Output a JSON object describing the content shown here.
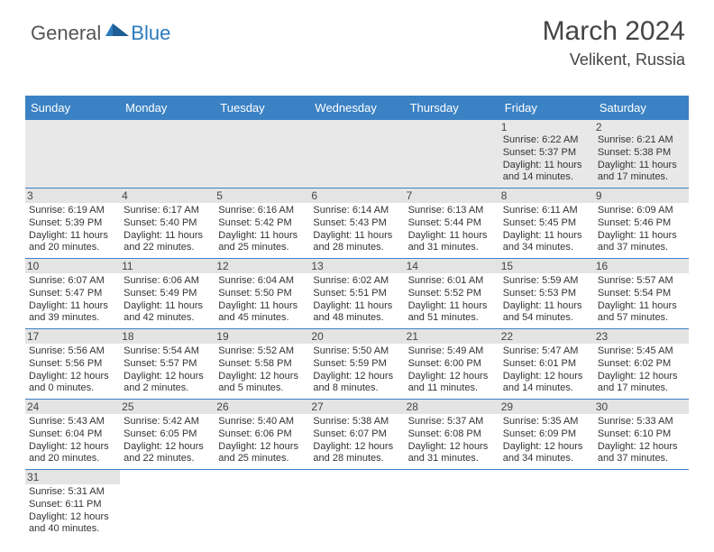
{
  "logo": {
    "first": "General",
    "second": "Blue"
  },
  "header": {
    "title": "March 2024",
    "location": "Velikent, Russia"
  },
  "colors": {
    "headerBg": "#3b82c4",
    "headerText": "#ffffff",
    "rowDivider": "#3b82c4",
    "dayBar": "#e4e4e4",
    "firstRowBg": "#e8e8e8",
    "logoBlue": "#2b7bbd"
  },
  "weekdays": [
    "Sunday",
    "Monday",
    "Tuesday",
    "Wednesday",
    "Thursday",
    "Friday",
    "Saturday"
  ],
  "weeks": [
    [
      null,
      null,
      null,
      null,
      null,
      {
        "n": "1",
        "sr": "Sunrise: 6:22 AM",
        "ss": "Sunset: 5:37 PM",
        "d1": "Daylight: 11 hours",
        "d2": "and 14 minutes."
      },
      {
        "n": "2",
        "sr": "Sunrise: 6:21 AM",
        "ss": "Sunset: 5:38 PM",
        "d1": "Daylight: 11 hours",
        "d2": "and 17 minutes."
      }
    ],
    [
      {
        "n": "3",
        "sr": "Sunrise: 6:19 AM",
        "ss": "Sunset: 5:39 PM",
        "d1": "Daylight: 11 hours",
        "d2": "and 20 minutes."
      },
      {
        "n": "4",
        "sr": "Sunrise: 6:17 AM",
        "ss": "Sunset: 5:40 PM",
        "d1": "Daylight: 11 hours",
        "d2": "and 22 minutes."
      },
      {
        "n": "5",
        "sr": "Sunrise: 6:16 AM",
        "ss": "Sunset: 5:42 PM",
        "d1": "Daylight: 11 hours",
        "d2": "and 25 minutes."
      },
      {
        "n": "6",
        "sr": "Sunrise: 6:14 AM",
        "ss": "Sunset: 5:43 PM",
        "d1": "Daylight: 11 hours",
        "d2": "and 28 minutes."
      },
      {
        "n": "7",
        "sr": "Sunrise: 6:13 AM",
        "ss": "Sunset: 5:44 PM",
        "d1": "Daylight: 11 hours",
        "d2": "and 31 minutes."
      },
      {
        "n": "8",
        "sr": "Sunrise: 6:11 AM",
        "ss": "Sunset: 5:45 PM",
        "d1": "Daylight: 11 hours",
        "d2": "and 34 minutes."
      },
      {
        "n": "9",
        "sr": "Sunrise: 6:09 AM",
        "ss": "Sunset: 5:46 PM",
        "d1": "Daylight: 11 hours",
        "d2": "and 37 minutes."
      }
    ],
    [
      {
        "n": "10",
        "sr": "Sunrise: 6:07 AM",
        "ss": "Sunset: 5:47 PM",
        "d1": "Daylight: 11 hours",
        "d2": "and 39 minutes."
      },
      {
        "n": "11",
        "sr": "Sunrise: 6:06 AM",
        "ss": "Sunset: 5:49 PM",
        "d1": "Daylight: 11 hours",
        "d2": "and 42 minutes."
      },
      {
        "n": "12",
        "sr": "Sunrise: 6:04 AM",
        "ss": "Sunset: 5:50 PM",
        "d1": "Daylight: 11 hours",
        "d2": "and 45 minutes."
      },
      {
        "n": "13",
        "sr": "Sunrise: 6:02 AM",
        "ss": "Sunset: 5:51 PM",
        "d1": "Daylight: 11 hours",
        "d2": "and 48 minutes."
      },
      {
        "n": "14",
        "sr": "Sunrise: 6:01 AM",
        "ss": "Sunset: 5:52 PM",
        "d1": "Daylight: 11 hours",
        "d2": "and 51 minutes."
      },
      {
        "n": "15",
        "sr": "Sunrise: 5:59 AM",
        "ss": "Sunset: 5:53 PM",
        "d1": "Daylight: 11 hours",
        "d2": "and 54 minutes."
      },
      {
        "n": "16",
        "sr": "Sunrise: 5:57 AM",
        "ss": "Sunset: 5:54 PM",
        "d1": "Daylight: 11 hours",
        "d2": "and 57 minutes."
      }
    ],
    [
      {
        "n": "17",
        "sr": "Sunrise: 5:56 AM",
        "ss": "Sunset: 5:56 PM",
        "d1": "Daylight: 12 hours",
        "d2": "and 0 minutes."
      },
      {
        "n": "18",
        "sr": "Sunrise: 5:54 AM",
        "ss": "Sunset: 5:57 PM",
        "d1": "Daylight: 12 hours",
        "d2": "and 2 minutes."
      },
      {
        "n": "19",
        "sr": "Sunrise: 5:52 AM",
        "ss": "Sunset: 5:58 PM",
        "d1": "Daylight: 12 hours",
        "d2": "and 5 minutes."
      },
      {
        "n": "20",
        "sr": "Sunrise: 5:50 AM",
        "ss": "Sunset: 5:59 PM",
        "d1": "Daylight: 12 hours",
        "d2": "and 8 minutes."
      },
      {
        "n": "21",
        "sr": "Sunrise: 5:49 AM",
        "ss": "Sunset: 6:00 PM",
        "d1": "Daylight: 12 hours",
        "d2": "and 11 minutes."
      },
      {
        "n": "22",
        "sr": "Sunrise: 5:47 AM",
        "ss": "Sunset: 6:01 PM",
        "d1": "Daylight: 12 hours",
        "d2": "and 14 minutes."
      },
      {
        "n": "23",
        "sr": "Sunrise: 5:45 AM",
        "ss": "Sunset: 6:02 PM",
        "d1": "Daylight: 12 hours",
        "d2": "and 17 minutes."
      }
    ],
    [
      {
        "n": "24",
        "sr": "Sunrise: 5:43 AM",
        "ss": "Sunset: 6:04 PM",
        "d1": "Daylight: 12 hours",
        "d2": "and 20 minutes."
      },
      {
        "n": "25",
        "sr": "Sunrise: 5:42 AM",
        "ss": "Sunset: 6:05 PM",
        "d1": "Daylight: 12 hours",
        "d2": "and 22 minutes."
      },
      {
        "n": "26",
        "sr": "Sunrise: 5:40 AM",
        "ss": "Sunset: 6:06 PM",
        "d1": "Daylight: 12 hours",
        "d2": "and 25 minutes."
      },
      {
        "n": "27",
        "sr": "Sunrise: 5:38 AM",
        "ss": "Sunset: 6:07 PM",
        "d1": "Daylight: 12 hours",
        "d2": "and 28 minutes."
      },
      {
        "n": "28",
        "sr": "Sunrise: 5:37 AM",
        "ss": "Sunset: 6:08 PM",
        "d1": "Daylight: 12 hours",
        "d2": "and 31 minutes."
      },
      {
        "n": "29",
        "sr": "Sunrise: 5:35 AM",
        "ss": "Sunset: 6:09 PM",
        "d1": "Daylight: 12 hours",
        "d2": "and 34 minutes."
      },
      {
        "n": "30",
        "sr": "Sunrise: 5:33 AM",
        "ss": "Sunset: 6:10 PM",
        "d1": "Daylight: 12 hours",
        "d2": "and 37 minutes."
      }
    ],
    [
      {
        "n": "31",
        "sr": "Sunrise: 5:31 AM",
        "ss": "Sunset: 6:11 PM",
        "d1": "Daylight: 12 hours",
        "d2": "and 40 minutes."
      },
      null,
      null,
      null,
      null,
      null,
      null
    ]
  ]
}
